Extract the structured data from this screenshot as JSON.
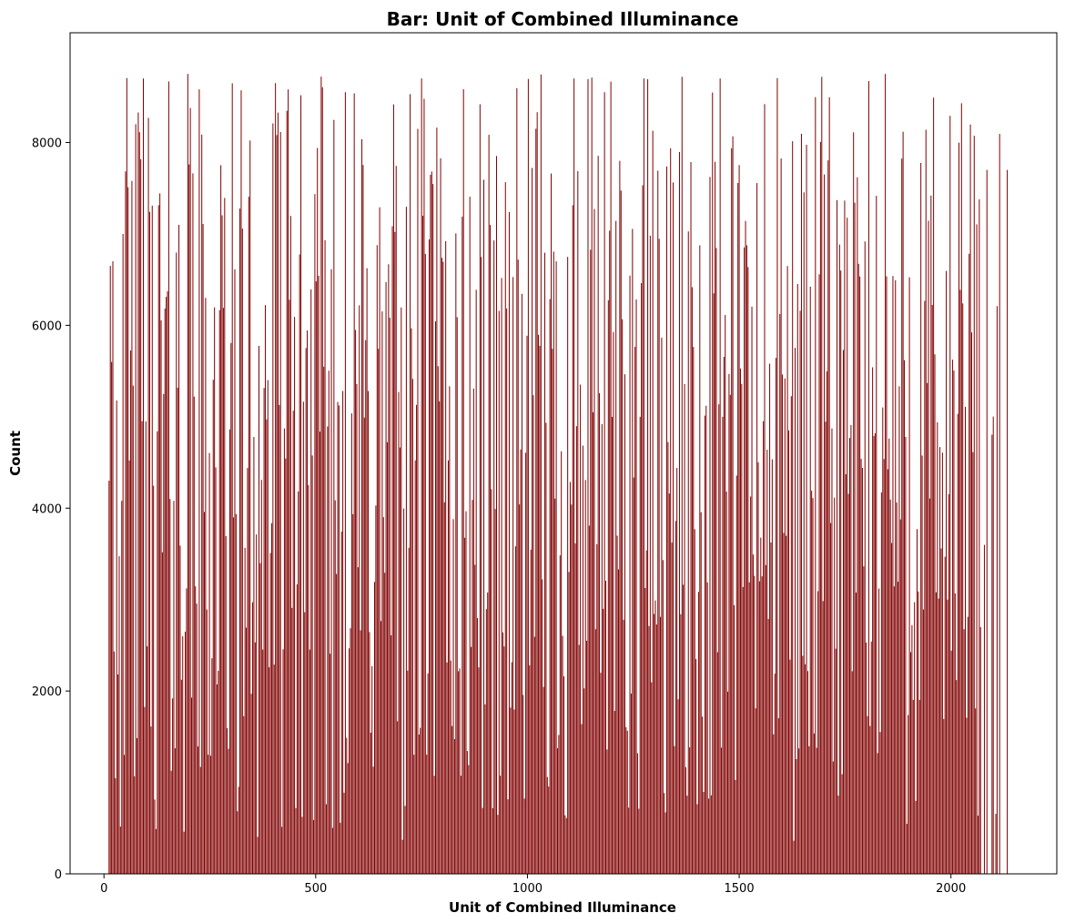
{
  "chart_data": {
    "type": "bar",
    "title": "Bar: Unit of Combined Illuminance",
    "xlabel": "Unit of Combined Illuminance",
    "ylabel": "Count",
    "xlim": [
      -80,
      2250
    ],
    "ylim": [
      0,
      9200
    ],
    "xticks": [
      0,
      500,
      1000,
      1500,
      2000
    ],
    "yticks": [
      0,
      2000,
      4000,
      6000,
      8000
    ],
    "grid": false,
    "bar_color": "#800000",
    "x_start": 12,
    "x_step": 3,
    "x_end": 2133,
    "bar_width": 1.2,
    "values_generation": "approximate; many bars between 300 and 8750",
    "highlighted_values": [
      {
        "x": 12,
        "y": 4300
      },
      {
        "x": 15,
        "y": 6650
      },
      {
        "x": 18,
        "y": 5600
      },
      {
        "x": 21,
        "y": 6700
      },
      {
        "x": 45,
        "y": 7000
      },
      {
        "x": 75,
        "y": 8200
      },
      {
        "x": 93,
        "y": 8700
      },
      {
        "x": 198,
        "y": 8750
      },
      {
        "x": 405,
        "y": 8650
      },
      {
        "x": 570,
        "y": 8550
      },
      {
        "x": 750,
        "y": 8700
      },
      {
        "x": 1110,
        "y": 8700
      },
      {
        "x": 1275,
        "y": 8700
      },
      {
        "x": 1455,
        "y": 8700
      },
      {
        "x": 1845,
        "y": 8750
      },
      {
        "x": 2085,
        "y": 7700
      },
      {
        "x": 2133,
        "y": 7700
      }
    ]
  }
}
